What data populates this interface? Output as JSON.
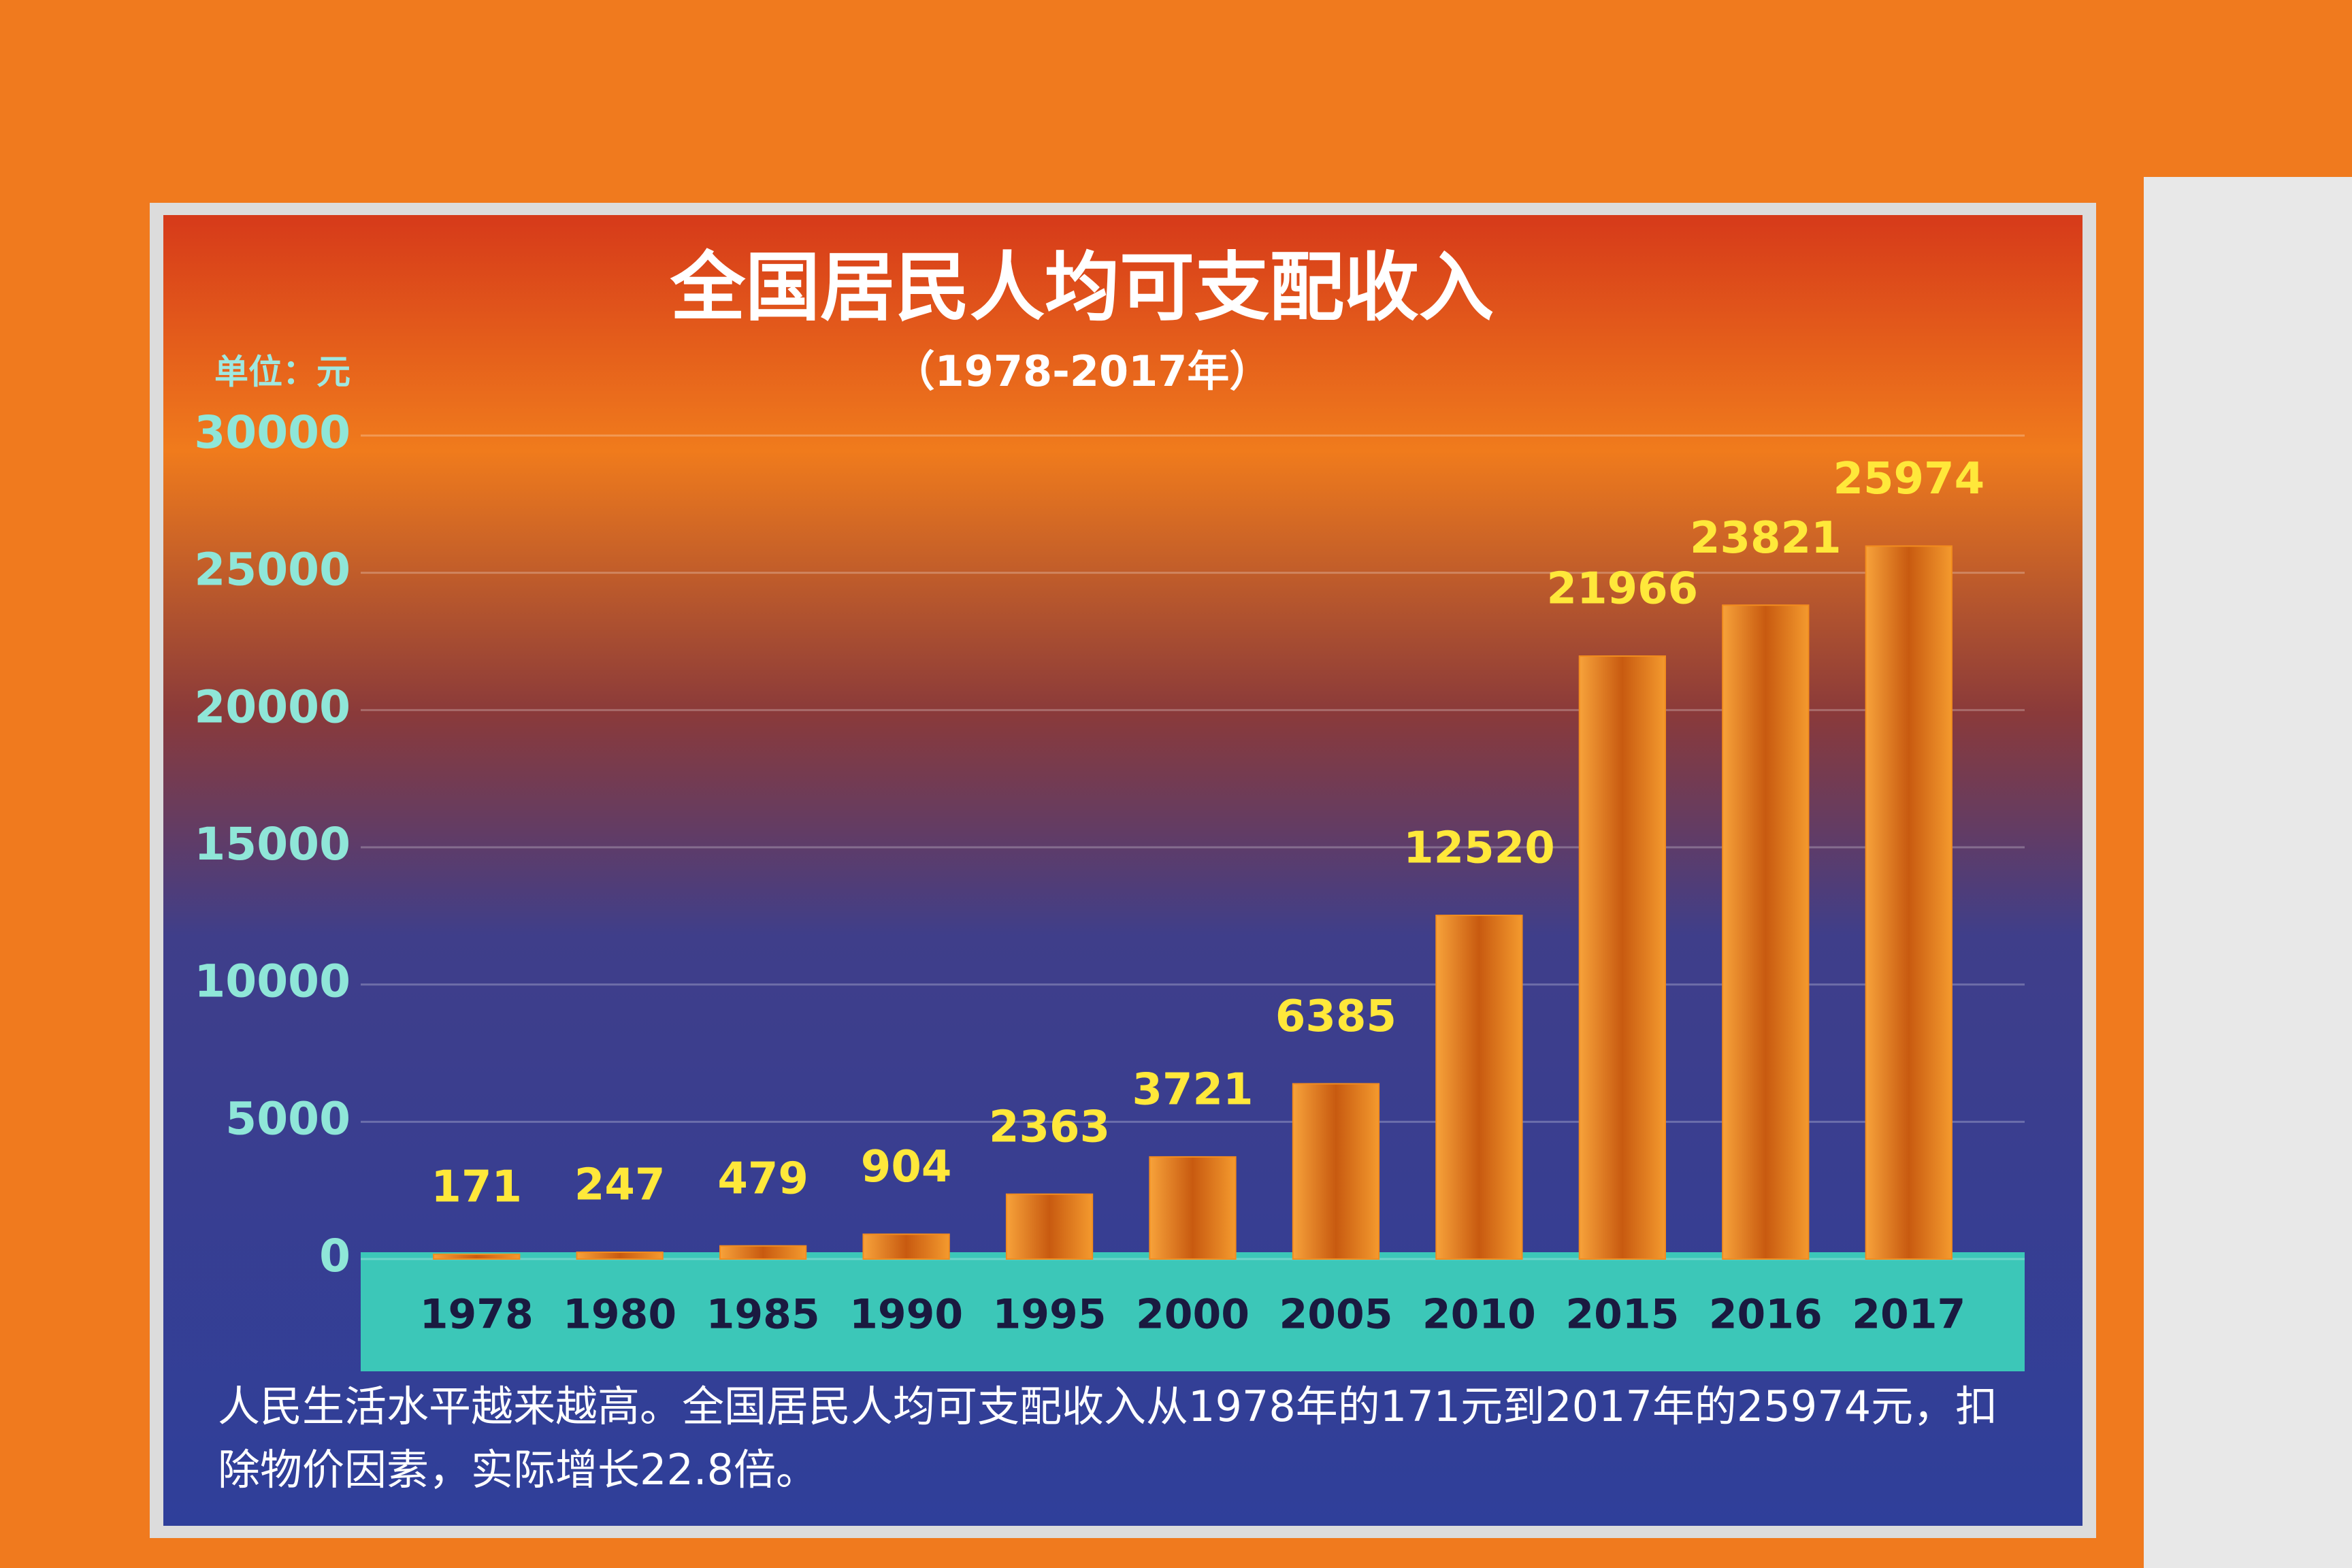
{
  "chart_data": {
    "type": "bar",
    "title": "全国居民人均可支配收入",
    "subtitle": "（1978-2017年）",
    "unit_label": "单位：元",
    "categories": [
      "1978",
      "1980",
      "1985",
      "1990",
      "1995",
      "2000",
      "2005",
      "2010",
      "2015",
      "2016",
      "2017"
    ],
    "values": [
      171,
      247,
      479,
      904,
      2363,
      3721,
      6385,
      12520,
      21966,
      23821,
      25974
    ],
    "color": "#f28c1e",
    "ylim": [
      0,
      30000
    ],
    "yticks": [
      0,
      5000,
      10000,
      15000,
      20000,
      25000,
      30000
    ],
    "grid": true,
    "annotation": "人民生活水平越来越高。全国居民人均可支配收入从1978年的171元到2017年的25974元，扣除物价因素，实际增长22.8倍。"
  }
}
